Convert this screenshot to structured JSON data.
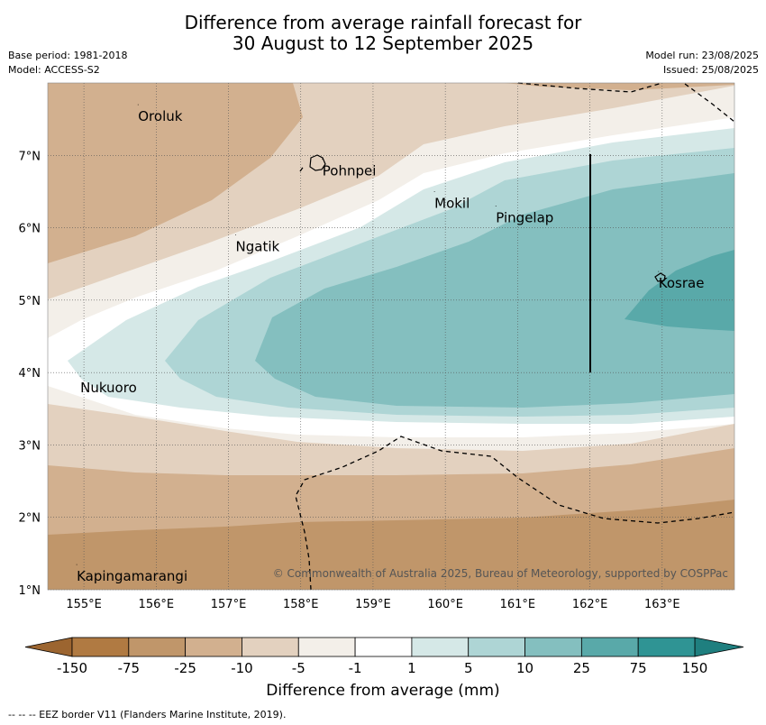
{
  "title": {
    "line1": "Difference from average rainfall forecast for",
    "line2": "30 August to 12 September 2025"
  },
  "meta": {
    "base_period": "Base period: 1981-2018",
    "model": "Model: ACCESS-S2",
    "model_run": "Model run: 23/08/2025",
    "issued": "Issued: 25/08/2025"
  },
  "map": {
    "lon_ticks": [
      "155°E",
      "156°E",
      "157°E",
      "158°E",
      "159°E",
      "160°E",
      "161°E",
      "162°E",
      "163°E"
    ],
    "lat_ticks": [
      "7°N",
      "6°N",
      "5°N",
      "4°N",
      "3°N",
      "2°N",
      "1°N"
    ],
    "lon_range": [
      154.5,
      164.0
    ],
    "lat_range": [
      1.0,
      8.0
    ],
    "gridlines": true,
    "places": [
      {
        "name": "Oroluk",
        "lon": 155.75,
        "lat": 7.6
      },
      {
        "name": "Pohnpei",
        "lon": 158.3,
        "lat": 6.85
      },
      {
        "name": "Mokil",
        "lon": 159.85,
        "lat": 6.4
      },
      {
        "name": "Pingelap",
        "lon": 160.7,
        "lat": 6.2
      },
      {
        "name": "Ngatik",
        "lon": 157.1,
        "lat": 5.8
      },
      {
        "name": "Kosrae",
        "lon": 162.95,
        "lat": 5.3
      },
      {
        "name": "Nukuoro",
        "lon": 154.95,
        "lat": 3.85
      },
      {
        "name": "Kapingamarangi",
        "lon": 154.9,
        "lat": 1.25
      }
    ],
    "copyright": "© Commonwealth of Australia 2025, Bureau of Meteorology, supported by COSPPac"
  },
  "colorbar": {
    "labels": [
      "-150",
      "-75",
      "-25",
      "-10",
      "-5",
      "-1",
      "1",
      "5",
      "10",
      "25",
      "75",
      "150"
    ],
    "colors": [
      "#b07a42",
      "#c0966a",
      "#d2b08f",
      "#e3d1bf",
      "#f3efe9",
      "#ffffff",
      "#d5e8e7",
      "#aed5d5",
      "#84bfbf",
      "#59a9a9",
      "#2f9494"
    ],
    "title": "Difference from average (mm)"
  },
  "footer": "--  --  -- EEZ border V11 (Flanders Marine Institute, 2019)."
}
